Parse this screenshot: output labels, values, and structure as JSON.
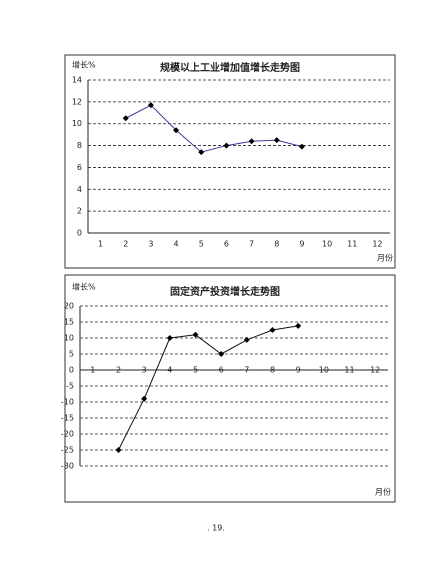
{
  "chart_data": [
    {
      "type": "line",
      "title": "规模以上工业增加值增长走势图",
      "y_label": "增长%",
      "x_label": "月份",
      "categories": [
        "1",
        "2",
        "3",
        "4",
        "5",
        "6",
        "7",
        "8",
        "9",
        "10",
        "11",
        "12"
      ],
      "series": [
        {
          "name": "增长",
          "color": "#3a3a9a",
          "values": [
            null,
            10.5,
            11.7,
            9.4,
            7.4,
            8.0,
            8.4,
            8.5,
            7.9,
            null,
            null,
            null
          ]
        }
      ],
      "ylim": [
        0,
        14
      ],
      "yticks": [
        0,
        2,
        4,
        6,
        8,
        10,
        12,
        14
      ],
      "grid": true
    },
    {
      "type": "line",
      "title": "固定资产投资增长走势图",
      "y_label": "增长%",
      "x_label": "月份",
      "categories": [
        "1",
        "2",
        "3",
        "4",
        "5",
        "6",
        "7",
        "8",
        "9",
        "10",
        "11",
        "12"
      ],
      "series": [
        {
          "name": "增长",
          "color": "#111111",
          "values": [
            null,
            -25,
            -9,
            10,
            11,
            5,
            9.4,
            12.5,
            13.8,
            null,
            null,
            null
          ]
        }
      ],
      "ylim": [
        -30,
        20
      ],
      "yticks": [
        -30,
        -25,
        -20,
        -15,
        -10,
        -5,
        0,
        5,
        10,
        15,
        20
      ],
      "grid": true
    }
  ],
  "page_number": ". 19."
}
